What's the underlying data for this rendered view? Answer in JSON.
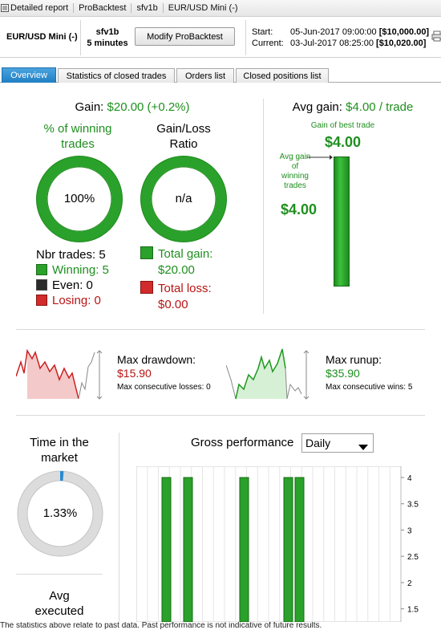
{
  "titlebar": {
    "crumbs": [
      "Detailed report",
      "ProBacktest",
      "sfv1b",
      "EUR/USD Mini (-)"
    ]
  },
  "infobar": {
    "instrument": "EUR/USD Mini (-)",
    "system_name": "sfv1b",
    "timeframe": "5 minutes",
    "modify_button": "Modify ProBacktest",
    "start_label": "Start:",
    "start_date": "05-Jun-2017 09:00:00",
    "start_capital": "[$10,000.00]",
    "current_label": "Current:",
    "current_date": "03-Jul-2017 08:25:00",
    "current_capital": "[$10,020.00]"
  },
  "tabs": [
    "Overview",
    "Statistics of closed trades",
    "Orders list",
    "Closed positions list"
  ],
  "overview": {
    "gain_label": "Gain:",
    "gain_value": "$20.00 (+0.2%)",
    "winning_pct_title_1": "% of winning",
    "winning_pct_title_2": "trades",
    "winning_pct_value": "100%",
    "winning_pct_fraction": 1.0,
    "gain_loss_title_1": "Gain/Loss",
    "gain_loss_title_2": "Ratio",
    "gain_loss_value": "n/a",
    "nbr_trades": "Nbr trades: 5",
    "winning": "Winning: 5",
    "even": "Even: 0",
    "losing": "Losing: 0",
    "total_gain_label": "Total gain:",
    "total_gain_value": "$20.00",
    "total_loss_label": "Total loss:",
    "total_loss_value": "$0.00",
    "avg_gain_label": "Avg gain:",
    "avg_gain_value": "$4.00 / trade",
    "best_trade_label": "Gain of best trade",
    "best_trade_value": "$4.00",
    "avg_winning_label": [
      "Avg gain",
      "of",
      "winning",
      "trades"
    ],
    "avg_winning_value": "$4.00",
    "max_drawdown_label": "Max drawdown:",
    "max_drawdown_value": "$15.90",
    "max_consec_losses": "Max consecutive losses: 0",
    "max_runup_label": "Max runup:",
    "max_runup_value": "$35.90",
    "max_consec_wins": "Max consecutive wins: 5",
    "time_in_market_title_1": "Time in the",
    "time_in_market_title_2": "market",
    "time_in_market_value": "1.33%",
    "time_in_market_fraction": 0.0133,
    "avg_executed_1": "Avg",
    "avg_executed_2": "executed",
    "gross_perf_title": "Gross performance",
    "gross_perf_period": "Daily"
  },
  "chart_data": {
    "type": "bar",
    "title": "Gross performance",
    "y_ticks": [
      "4",
      "3.5",
      "3",
      "2.5",
      "2",
      "1.5"
    ],
    "ylim": [
      1.25,
      4.1
    ],
    "values": [
      4,
      4,
      4,
      4,
      4
    ]
  },
  "footer": "The statistics above relate to past data. Past performance is not indicative of future results.",
  "colors": {
    "green": "#1f8f1f",
    "red": "#b81414",
    "bar_green": "#2aa12a",
    "tab_active": "#2a8ad0"
  }
}
